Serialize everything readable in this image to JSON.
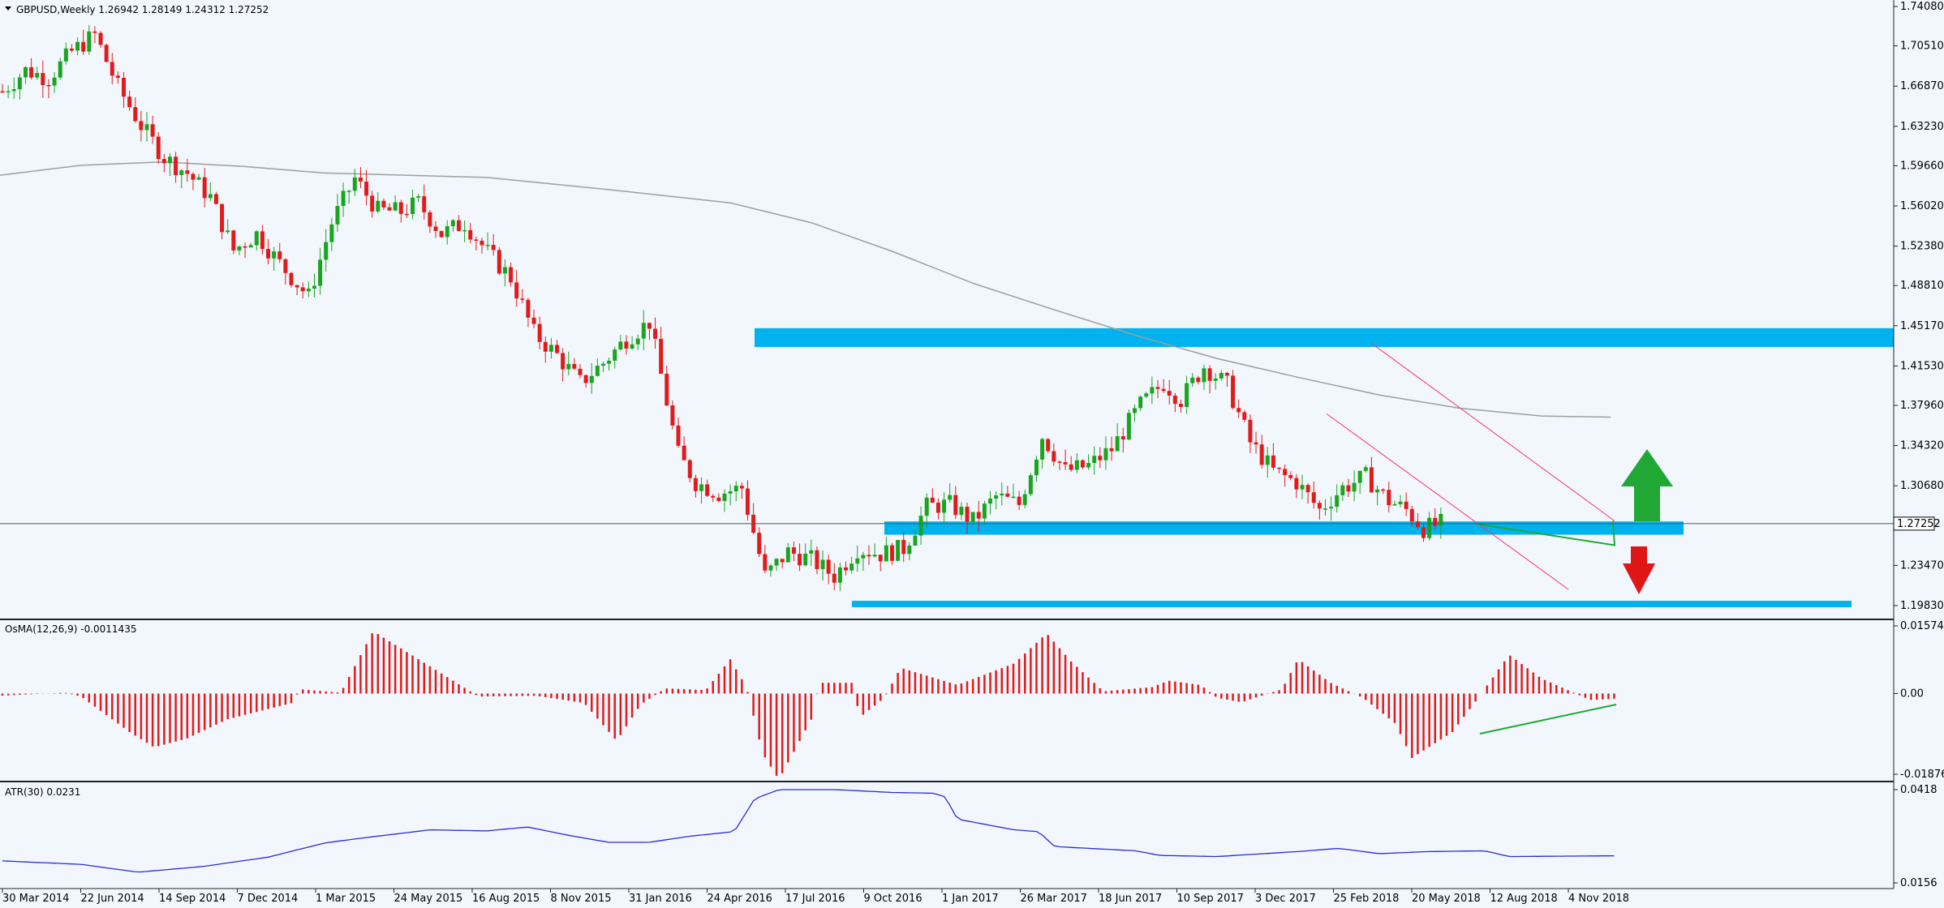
{
  "colors": {
    "bg": "#f1f7fd",
    "bull": "#1aa51f",
    "bear": "#e11b1b",
    "zone": "#00b3ef",
    "ma": "#9e9e9e",
    "atr": "#2b2bd1",
    "channel": "#ff2f7a",
    "trend": "#21a834",
    "arrow_up": "#21a834",
    "arrow_down": "#e01515"
  },
  "main": {
    "header": "GBPUSD,Weekly  1.26942 1.28149 1.24312 1.27252",
    "current_price": "1.27252",
    "price_ticks": [
      "1.74080",
      "1.70510",
      "1.66870",
      "1.63230",
      "1.59660",
      "1.56020",
      "1.52380",
      "1.48810",
      "1.45170",
      "1.41530",
      "1.37960",
      "1.34320",
      "1.30680",
      "1.23470",
      "1.19830"
    ],
    "annotations": {
      "up_arrow": "bullish-scenario-arrow",
      "down_arrow": "bearish-scenario-arrow"
    }
  },
  "osma": {
    "header": "OsMA(12,26,9) -0.0011435",
    "ticks": [
      "0.0157418",
      "0.00",
      "-0.0187647"
    ]
  },
  "atr": {
    "header": "ATR(30) 0.0231",
    "ticks": [
      "0.0418",
      "0.0156"
    ]
  },
  "time_axis": [
    "30 Mar 2014",
    "22 Jun 2014",
    "14 Sep 2014",
    "7 Dec 2014",
    "1 Mar 2015",
    "24 May 2015",
    "16 Aug 2015",
    "8 Nov 2015",
    "31 Jan 2016",
    "24 Apr 2016",
    "17 Jul 2016",
    "9 Oct 2016",
    "1 Jan 2017",
    "26 Mar 2017",
    "18 Jun 2017",
    "10 Sep 2017",
    "3 Dec 2017",
    "25 Feb 2018",
    "20 May 2018",
    "12 Aug 2018",
    "4 Nov 2018"
  ],
  "chart_data": {
    "type": "candlestick",
    "title": "GBPUSD,Weekly",
    "close_series": [
      [
        "2014-03-30",
        1.664
      ],
      [
        "2014-04-27",
        1.683
      ],
      [
        "2014-05-25",
        1.676
      ],
      [
        "2014-06-22",
        1.7
      ],
      [
        "2014-07-20",
        1.715
      ],
      [
        "2014-08-17",
        1.668
      ],
      [
        "2014-09-14",
        1.633
      ],
      [
        "2014-10-12",
        1.604
      ],
      [
        "2014-11-09",
        1.59
      ],
      [
        "2014-12-07",
        1.568
      ],
      [
        "2015-01-04",
        1.52
      ],
      [
        "2015-02-01",
        1.535
      ],
      [
        "2015-03-01",
        1.508
      ],
      [
        "2015-04-05",
        1.478
      ],
      [
        "2015-05-03",
        1.545
      ],
      [
        "2015-05-31",
        1.585
      ],
      [
        "2015-06-28",
        1.556
      ],
      [
        "2015-07-26",
        1.555
      ],
      [
        "2015-08-16",
        1.563
      ],
      [
        "2015-09-13",
        1.535
      ],
      [
        "2015-10-11",
        1.545
      ],
      [
        "2015-11-08",
        1.518
      ],
      [
        "2015-12-06",
        1.495
      ],
      [
        "2016-01-03",
        1.445
      ],
      [
        "2016-01-31",
        1.425
      ],
      [
        "2016-02-28",
        1.4
      ],
      [
        "2016-03-27",
        1.418
      ],
      [
        "2016-04-24",
        1.44
      ],
      [
        "2016-05-22",
        1.455
      ],
      [
        "2016-06-26",
        1.335
      ],
      [
        "2016-07-17",
        1.31
      ],
      [
        "2016-08-14",
        1.3
      ],
      [
        "2016-09-11",
        1.305
      ],
      [
        "2016-10-09",
        1.225
      ],
      [
        "2016-11-06",
        1.247
      ],
      [
        "2016-12-04",
        1.24
      ],
      [
        "2017-01-01",
        1.225
      ],
      [
        "2017-01-29",
        1.25
      ],
      [
        "2017-02-26",
        1.245
      ],
      [
        "2017-03-26",
        1.25
      ],
      [
        "2017-04-23",
        1.288
      ],
      [
        "2017-05-21",
        1.29
      ],
      [
        "2017-06-18",
        1.275
      ],
      [
        "2017-07-16",
        1.297
      ],
      [
        "2017-08-13",
        1.29
      ],
      [
        "2017-09-10",
        1.352
      ],
      [
        "2017-10-08",
        1.32
      ],
      [
        "2017-11-05",
        1.325
      ],
      [
        "2017-12-03",
        1.34
      ],
      [
        "2018-01-07",
        1.38
      ],
      [
        "2018-02-04",
        1.4
      ],
      [
        "2018-02-25",
        1.385
      ],
      [
        "2018-03-25",
        1.415
      ],
      [
        "2018-04-22",
        1.398
      ],
      [
        "2018-05-20",
        1.346
      ],
      [
        "2018-06-17",
        1.32
      ],
      [
        "2018-07-15",
        1.31
      ],
      [
        "2018-08-12",
        1.285
      ],
      [
        "2018-09-09",
        1.305
      ],
      [
        "2018-10-07",
        1.315
      ],
      [
        "2018-11-04",
        1.293
      ],
      [
        "2018-11-25",
        1.285
      ],
      [
        "2018-12-16",
        1.268
      ],
      [
        "2019-01-06",
        1.2725
      ]
    ],
    "moving_average_shape": "long-period moving average, peaks near 1.60 late 2014 and declines to about 1.37 at the end",
    "resistance_zone": [
      1.4325,
      1.4495
    ],
    "support_zone": [
      1.2625,
      1.2745
    ],
    "lower_support_line": 1.199,
    "channel": "descending channel from Feb 2018 high to latest bars",
    "osma_shape": "histogram oscillating around 0, large negative trough mid-2016, positive peak ~0.0157 in Jun 2015, negative trough mid-2018, bullish divergence line at end",
    "atr_shape": "ATR line from ~0.022 rising to ~0.028 in 2015, spike to ~0.042 after Jun 2016, declining to ~0.022 by 2019"
  }
}
